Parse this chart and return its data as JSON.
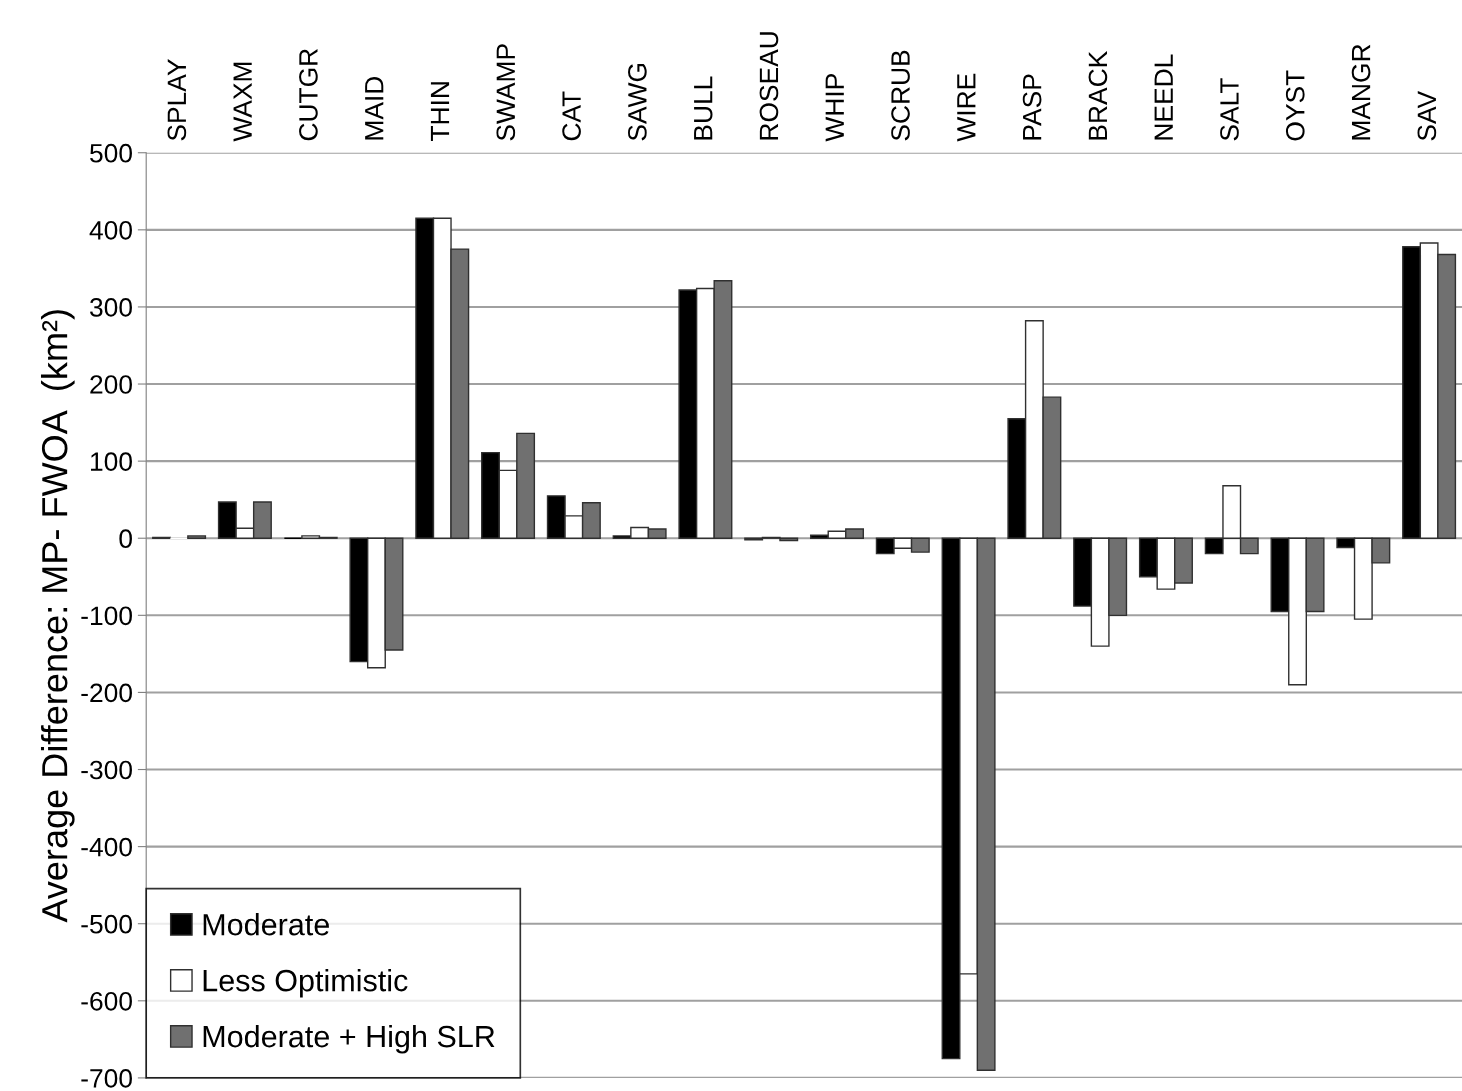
{
  "chart_data": {
    "type": "bar",
    "ylabel": "Average Difference: MP- FWOA  (km²)",
    "categories": [
      "SPLAY",
      "WAXM",
      "CUTGR",
      "MAID",
      "THIN",
      "SWAMP",
      "CAT",
      "SAWG",
      "BULL",
      "ROSEAU",
      "WHIP",
      "SCRUB",
      "WIRE",
      "PASP",
      "BRACK",
      "NEEDL",
      "SALT",
      "OYST",
      "MANGR",
      "SAV"
    ],
    "series": [
      {
        "name": "Moderate",
        "color": "#000000",
        "values": [
          1,
          47,
          0,
          -160,
          415,
          111,
          55,
          3,
          322,
          -2,
          4,
          -20,
          -675,
          155,
          -88,
          -50,
          -20,
          -95,
          -12,
          378
        ]
      },
      {
        "name": "Less Optimistic",
        "color": "#ffffff",
        "values": [
          0,
          13,
          3,
          -168,
          415,
          88,
          29,
          14,
          324,
          1,
          9,
          -13,
          -565,
          282,
          -140,
          -66,
          68,
          -190,
          -105,
          383
        ]
      },
      {
        "name": "Moderate + High SLR",
        "color": "#707070",
        "values": [
          3,
          47,
          1,
          -145,
          375,
          136,
          46,
          12,
          334,
          -3,
          12,
          -18,
          -690,
          183,
          -100,
          -58,
          -20,
          -95,
          -32,
          368
        ]
      }
    ],
    "ylim": [
      -700,
      500
    ],
    "yticks": [
      -700,
      -600,
      -500,
      -400,
      -300,
      -200,
      -100,
      0,
      100,
      200,
      300,
      400,
      500
    ],
    "grid": "y",
    "legend": "bottom left"
  }
}
